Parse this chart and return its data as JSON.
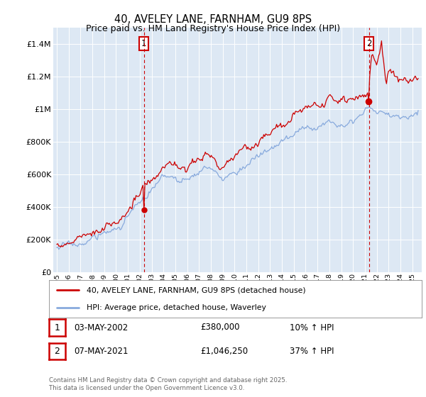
{
  "title": "40, AVELEY LANE, FARNHAM, GU9 8PS",
  "subtitle": "Price paid vs. HM Land Registry's House Price Index (HPI)",
  "legend_line1": "40, AVELEY LANE, FARNHAM, GU9 8PS (detached house)",
  "legend_line2": "HPI: Average price, detached house, Waverley",
  "annotation1_label": "1",
  "annotation1_date": "03-MAY-2002",
  "annotation1_price": "£380,000",
  "annotation1_hpi": "10% ↑ HPI",
  "annotation1_year": 2002.35,
  "annotation1_value": 380000,
  "annotation2_label": "2",
  "annotation2_date": "07-MAY-2021",
  "annotation2_price": "£1,046,250",
  "annotation2_hpi": "37% ↑ HPI",
  "annotation2_year": 2021.35,
  "annotation2_value": 1046250,
  "footer": "Contains HM Land Registry data © Crown copyright and database right 2025.\nThis data is licensed under the Open Government Licence v3.0.",
  "ylim": [
    0,
    1500000
  ],
  "yticks": [
    0,
    200000,
    400000,
    600000,
    800000,
    1000000,
    1200000,
    1400000
  ],
  "ytick_labels": [
    "£0",
    "£200K",
    "£400K",
    "£600K",
    "£800K",
    "£1M",
    "£1.2M",
    "£1.4M"
  ],
  "line_color_price": "#cc0000",
  "line_color_hpi": "#88aadd",
  "background_color": "#dde8f4",
  "fig_bg_color": "#ffffff",
  "annotation_box_color": "#cc0000",
  "grid_color": "#ffffff",
  "title_fontsize": 10.5,
  "subtitle_fontsize": 9
}
